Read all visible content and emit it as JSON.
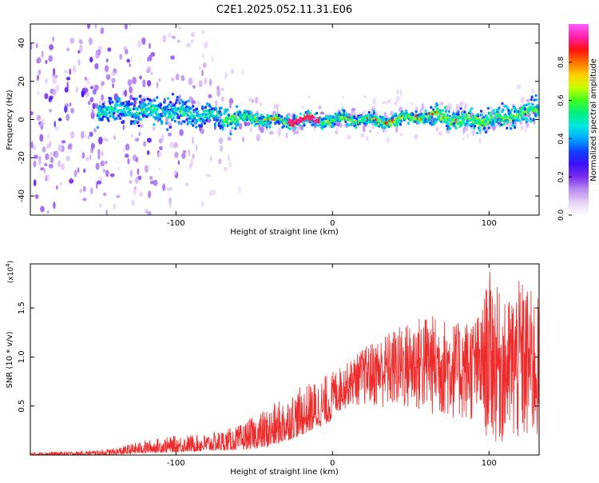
{
  "page": {
    "title": "C2E1.2025.052.11.31.E06"
  },
  "colors": {
    "snr_line": "#ee2a2a",
    "axis": "#000000",
    "background": "#ffffff",
    "colormap": [
      "#ffffff",
      "#e6d0f5",
      "#b98cf0",
      "#7a2df0",
      "#3b10f5",
      "#1040ff",
      "#00a8ff",
      "#00e8e0",
      "#00f080",
      "#40ff20",
      "#c8ff00",
      "#ffd000",
      "#ff7000",
      "#ff1010",
      "#ff20b0",
      "#ff60ff"
    ]
  },
  "chart_data": [
    {
      "type": "heatmap",
      "title": "C2E1.2025.052.11.31.E06",
      "xlabel": "Height of straight line (km)",
      "ylabel": "Frequency (Hz)",
      "xlim": [
        -193,
        132
      ],
      "ylim": [
        -50,
        50
      ],
      "x_ticks": [
        -100,
        0,
        100
      ],
      "y_ticks": [
        -40,
        -20,
        0,
        20,
        40
      ],
      "grid": false,
      "colorbar": {
        "label": "Normalized spectral amplitude",
        "range": [
          0,
          1
        ],
        "ticks": [
          0.0,
          0.2,
          0.4,
          0.6,
          0.8
        ]
      },
      "ridge_center_frequency_hz": [
        {
          "x": -140,
          "y": 5
        },
        {
          "x": -100,
          "y": 4
        },
        {
          "x": -80,
          "y": 2
        },
        {
          "x": -60,
          "y": 1
        },
        {
          "x": -40,
          "y": 0
        },
        {
          "x": -30,
          "y": -1
        },
        {
          "x": -20,
          "y": 0
        },
        {
          "x": -10,
          "y": 0
        },
        {
          "x": 0,
          "y": 0
        },
        {
          "x": 10,
          "y": 0
        },
        {
          "x": 20,
          "y": 0
        },
        {
          "x": 30,
          "y": -1
        },
        {
          "x": 40,
          "y": 0
        },
        {
          "x": 50,
          "y": 1
        },
        {
          "x": 60,
          "y": 2
        },
        {
          "x": 70,
          "y": 1
        },
        {
          "x": 80,
          "y": 0
        },
        {
          "x": 90,
          "y": 0
        },
        {
          "x": 100,
          "y": 0
        },
        {
          "x": 110,
          "y": 1
        },
        {
          "x": 120,
          "y": 3
        },
        {
          "x": 130,
          "y": 4
        }
      ],
      "peak_amplitude_region_km": [
        -28,
        -8
      ]
    },
    {
      "type": "line",
      "xlabel": "Height of straight line (km)",
      "ylabel": "SNR (10 * v/v)",
      "y_scale_note": "(x10",
      "y_scale_exponent": "4",
      "xlim": [
        -193,
        132
      ],
      "ylim": [
        0,
        1.95
      ],
      "x_ticks": [
        -100,
        0,
        100
      ],
      "y_ticks": [
        0.5,
        1.0,
        1.5
      ],
      "grid": false,
      "series": [
        {
          "color": "#ee2a2a",
          "envelope": [
            {
              "x": -193,
              "low": 0.0,
              "high": 0.03
            },
            {
              "x": -160,
              "low": 0.0,
              "high": 0.04
            },
            {
              "x": -140,
              "low": 0.0,
              "high": 0.07
            },
            {
              "x": -120,
              "low": 0.02,
              "high": 0.15
            },
            {
              "x": -100,
              "low": 0.03,
              "high": 0.2
            },
            {
              "x": -80,
              "low": 0.04,
              "high": 0.22
            },
            {
              "x": -60,
              "low": 0.05,
              "high": 0.3
            },
            {
              "x": -40,
              "low": 0.08,
              "high": 0.5
            },
            {
              "x": -20,
              "low": 0.2,
              "high": 0.7
            },
            {
              "x": 0,
              "low": 0.35,
              "high": 0.85
            },
            {
              "x": 10,
              "low": 0.5,
              "high": 0.95
            },
            {
              "x": 20,
              "low": 0.5,
              "high": 1.1
            },
            {
              "x": 40,
              "low": 0.45,
              "high": 1.3
            },
            {
              "x": 60,
              "low": 0.4,
              "high": 1.45
            },
            {
              "x": 80,
              "low": 0.35,
              "high": 1.35
            },
            {
              "x": 95,
              "low": 0.3,
              "high": 1.45
            },
            {
              "x": 100,
              "low": 0.1,
              "high": 1.9
            },
            {
              "x": 110,
              "low": 0.1,
              "high": 1.55
            },
            {
              "x": 120,
              "low": 0.05,
              "high": 1.8
            },
            {
              "x": 132,
              "low": 0.1,
              "high": 1.6
            }
          ]
        }
      ]
    }
  ]
}
